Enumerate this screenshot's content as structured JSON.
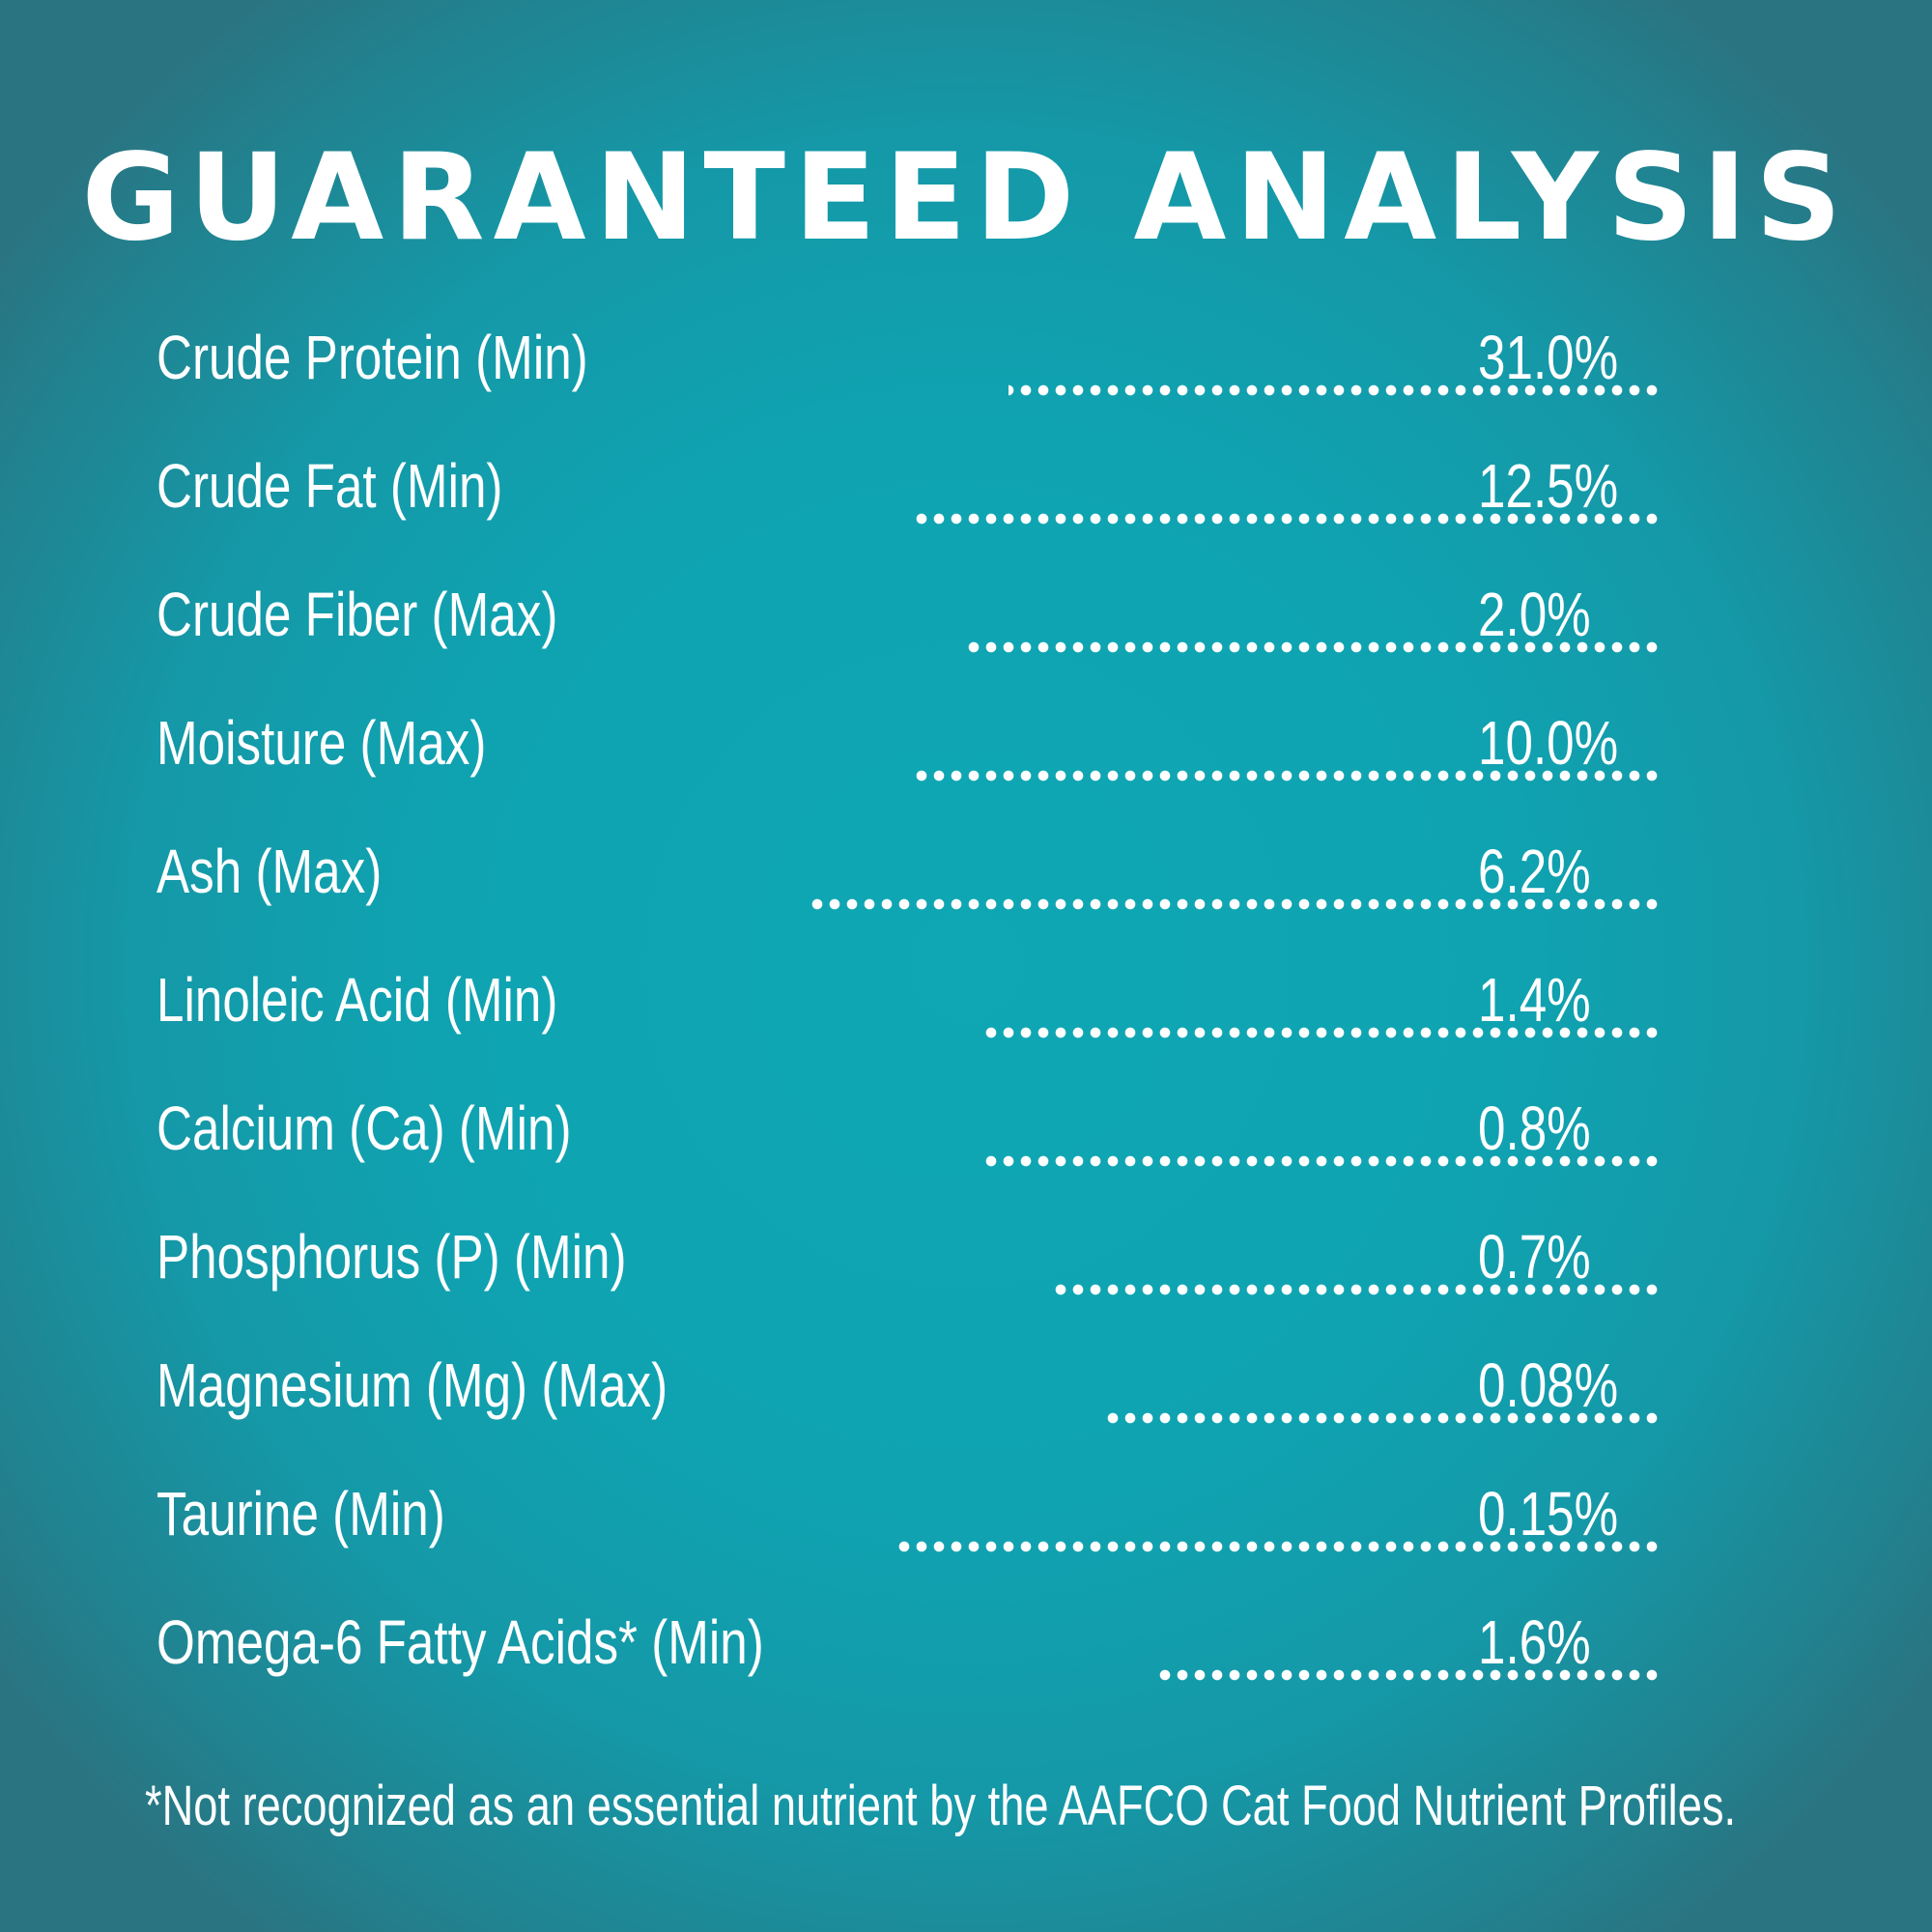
{
  "title": "GUARANTEED ANALYSIS",
  "nutrients": [
    {
      "label": "Crude Protein (Min)",
      "value": "31.0%"
    },
    {
      "label": "Crude Fat (Min)",
      "value": "12.5%"
    },
    {
      "label": "Crude Fiber (Max)",
      "value": "2.0%"
    },
    {
      "label": "Moisture (Max)",
      "value": "10.0%"
    },
    {
      "label": "Ash (Max)",
      "value": "6.2%"
    },
    {
      "label": "Linoleic Acid (Min)",
      "value": "1.4%"
    },
    {
      "label": "Calcium (Ca) (Min)",
      "value": "0.8%"
    },
    {
      "label": "Phosphorus (P) (Min)",
      "value": "0.7%"
    },
    {
      "label": "Magnesium (Mg) (Max)",
      "value": "0.08%"
    },
    {
      "label": "Taurine (Min)",
      "value": "0.15%"
    },
    {
      "label": "Omega-6 Fatty Acids* (Min)",
      "value": "1.6%"
    }
  ],
  "footnote": "*Not recognized as an essential nutrient by the AAFCO Cat Food Nutrient Profiles.",
  "colors": {
    "background_center": "#0fa7b4",
    "background_edge": "#2a7482",
    "text": "#ffffff"
  }
}
